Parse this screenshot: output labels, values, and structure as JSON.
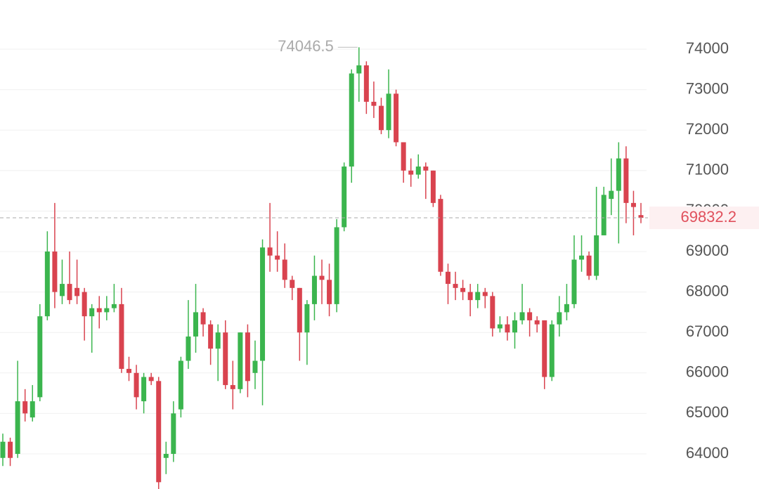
{
  "chart_data": {
    "type": "candlestick",
    "up_color": "#3bb54e",
    "down_color": "#d9434f",
    "price_line_color": "#e0505c",
    "ylim": [
      63132,
      75215
    ],
    "yticks": [
      64000,
      65000,
      66000,
      67000,
      68000,
      69000,
      70000,
      71000,
      72000,
      73000,
      74000
    ],
    "grid": true,
    "open": [
      63900,
      64300,
      64000,
      65300,
      64900,
      65400,
      67400,
      69000,
      67900,
      68200,
      68100,
      68000,
      67400,
      67600,
      67500,
      67600,
      67700,
      66100,
      66000,
      65300,
      65900,
      65800,
      63900,
      64000,
      65100,
      66300,
      66900,
      67500,
      67200,
      66600,
      67000,
      65700,
      65600,
      67000,
      66000,
      66300,
      69100,
      68900,
      68800,
      68300,
      68100,
      67000,
      67700,
      68400,
      68300,
      67700,
      69600,
      71100,
      73400,
      73600,
      72700,
      72600,
      72000,
      72900,
      71700,
      71000,
      70900,
      71100,
      71000,
      70300,
      68500,
      68200,
      68100,
      68000,
      67800,
      68000,
      67900,
      67100,
      67200,
      67000,
      67300,
      67500,
      67300,
      67300,
      65900,
      67200,
      67500,
      67700,
      68800,
      68900,
      68400,
      69400,
      70300,
      70500,
      71300,
      70200,
      69900
    ],
    "high": [
      64500,
      64400,
      66300,
      65600,
      65700,
      67700,
      69500,
      70200,
      68800,
      69000,
      68800,
      68100,
      67700,
      67900,
      67900,
      68200,
      68100,
      66400,
      66200,
      66000,
      66000,
      65900,
      64300,
      65300,
      66400,
      67800,
      68200,
      67600,
      67300,
      67200,
      67300,
      66300,
      67000,
      67200,
      66800,
      69300,
      70200,
      69500,
      69200,
      68400,
      68100,
      67800,
      68900,
      68800,
      68700,
      69800,
      71200,
      73500,
      74046.5,
      73700,
      73200,
      72800,
      73500,
      73000,
      71700,
      71300,
      71400,
      71200,
      71000,
      70400,
      68700,
      68500,
      68300,
      68200,
      68200,
      68100,
      68000,
      67400,
      67400,
      67500,
      68200,
      67600,
      67400,
      67300,
      67300,
      67900,
      68200,
      69400,
      69400,
      69000,
      70600,
      70600,
      71300,
      71700,
      71600,
      70500,
      70200
    ],
    "low": [
      63700,
      63700,
      63900,
      64800,
      64800,
      65300,
      67300,
      67600,
      67700,
      67700,
      67700,
      66800,
      66500,
      67100,
      67300,
      67500,
      66000,
      65800,
      65100,
      65000,
      65700,
      63000,
      63500,
      63800,
      64900,
      66100,
      66500,
      66900,
      66200,
      65800,
      65600,
      65100,
      65500,
      65400,
      65600,
      65200,
      68500,
      68500,
      68100,
      67800,
      66300,
      66200,
      67300,
      67700,
      67400,
      67500,
      69500,
      70700,
      72700,
      72400,
      72300,
      71900,
      71800,
      71600,
      70700,
      70600,
      70800,
      70300,
      70100,
      68400,
      67700,
      67800,
      67800,
      67400,
      67600,
      67600,
      66900,
      67000,
      66800,
      66600,
      67200,
      66900,
      67000,
      65600,
      65800,
      66900,
      67300,
      67600,
      68500,
      68300,
      68300,
      69400,
      69900,
      69200,
      69700,
      69400,
      69700
    ],
    "close": [
      64300,
      63900,
      65300,
      65000,
      65300,
      67400,
      69000,
      68000,
      68200,
      67800,
      67900,
      67400,
      67600,
      67500,
      67600,
      67700,
      66100,
      66000,
      65400,
      65900,
      65800,
      63300,
      64000,
      65000,
      66300,
      66900,
      67500,
      67200,
      66600,
      67000,
      65700,
      65600,
      67000,
      65800,
      66300,
      69100,
      68900,
      68800,
      68300,
      68100,
      67000,
      67700,
      68400,
      68300,
      67700,
      69600,
      71100,
      73400,
      73600,
      72700,
      72600,
      72000,
      72900,
      71700,
      71000,
      70900,
      71100,
      71000,
      70200,
      68500,
      68200,
      68100,
      68000,
      67800,
      68000,
      67900,
      67100,
      67200,
      67000,
      67300,
      67500,
      67300,
      67200,
      65900,
      67200,
      67500,
      67700,
      68800,
      68900,
      68400,
      69400,
      70400,
      70500,
      71300,
      70200,
      70100,
      69832.2
    ]
  }
}
